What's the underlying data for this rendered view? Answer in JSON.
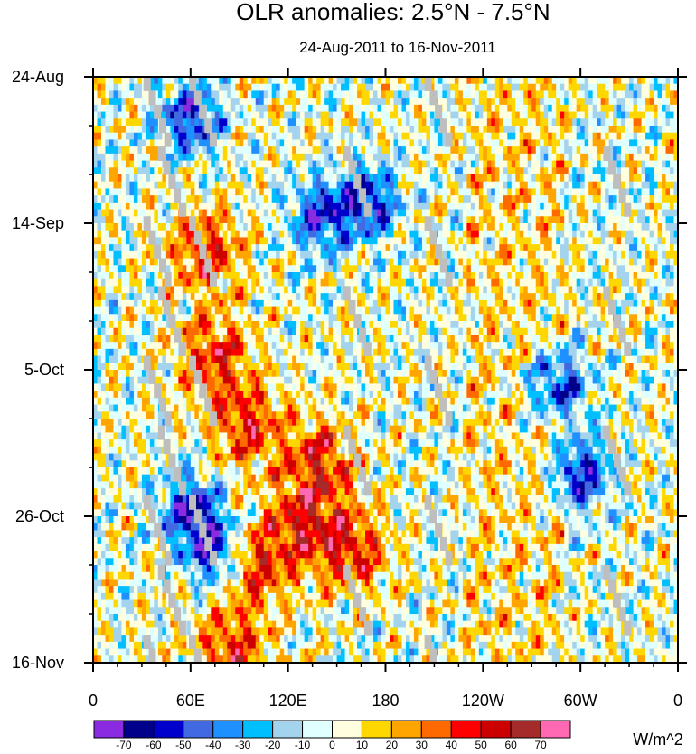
{
  "chart_data": {
    "type": "heatmap",
    "title": "OLR anomalies: 2.5°N - 7.5°N",
    "subtitle": "24-Aug-2011 to 16-Nov-2011",
    "x_label": "",
    "y_label": "",
    "x_ticks": [
      {
        "lon": 0,
        "label": "0"
      },
      {
        "lon": 60,
        "label": "60E"
      },
      {
        "lon": 120,
        "label": "120E"
      },
      {
        "lon": 180,
        "label": "180"
      },
      {
        "lon": 240,
        "label": "120W"
      },
      {
        "lon": 300,
        "label": "60W"
      },
      {
        "lon": 360,
        "label": "0"
      }
    ],
    "x_range": [
      0,
      360
    ],
    "y_ticks": [
      {
        "day": 0,
        "label": "24-Aug"
      },
      {
        "day": 21,
        "label": "14-Sep"
      },
      {
        "day": 42,
        "label": "5-Oct"
      },
      {
        "day": 63,
        "label": "26-Oct"
      },
      {
        "day": 84,
        "label": "16-Nov"
      }
    ],
    "y_range_days": [
      0,
      84
    ],
    "y_direction": "time increases downward",
    "colorbar": {
      "units": "W/m^2",
      "levels": [
        -70,
        -60,
        -50,
        -40,
        -30,
        -20,
        -10,
        0,
        10,
        20,
        30,
        40,
        50,
        60,
        70
      ],
      "level_labels": [
        "-70",
        "-60",
        "-50",
        "-40",
        "-30",
        "-20",
        "-10",
        "0",
        "10",
        "20",
        "30",
        "40",
        "50",
        "60",
        "70"
      ],
      "colors": [
        "#8a2be2",
        "#00008b",
        "#0000cd",
        "#4169e1",
        "#1e90ff",
        "#00bfff",
        "#a4d3ee",
        "#e0ffff",
        "#ffffe0",
        "#ffd700",
        "#ffa500",
        "#ff6a00",
        "#ff0000",
        "#cd0000",
        "#a52a2a",
        "#ff69b4"
      ],
      "missing_color": "#bebebe"
    },
    "features": {
      "positive_anomaly_band": [
        {
          "lon": 70,
          "day": 25
        },
        {
          "lon": 75,
          "day": 40
        },
        {
          "lon": 95,
          "day": 50
        },
        {
          "lon": 140,
          "day": 55
        },
        {
          "lon": 130,
          "day": 64
        },
        {
          "lon": 160,
          "day": 68
        },
        {
          "lon": 100,
          "day": 70
        },
        {
          "lon": 85,
          "day": 82
        }
      ],
      "strong_negative_centers": [
        {
          "lon": 60,
          "day": 6
        },
        {
          "lon": 140,
          "day": 20
        },
        {
          "lon": 170,
          "day": 18
        },
        {
          "lon": 60,
          "day": 62
        },
        {
          "lon": 75,
          "day": 68
        },
        {
          "lon": 300,
          "day": 57
        },
        {
          "lon": 285,
          "day": 44
        }
      ],
      "missing_streaks_lon": [
        37,
        46,
        65,
        160,
        210,
        320
      ]
    }
  }
}
